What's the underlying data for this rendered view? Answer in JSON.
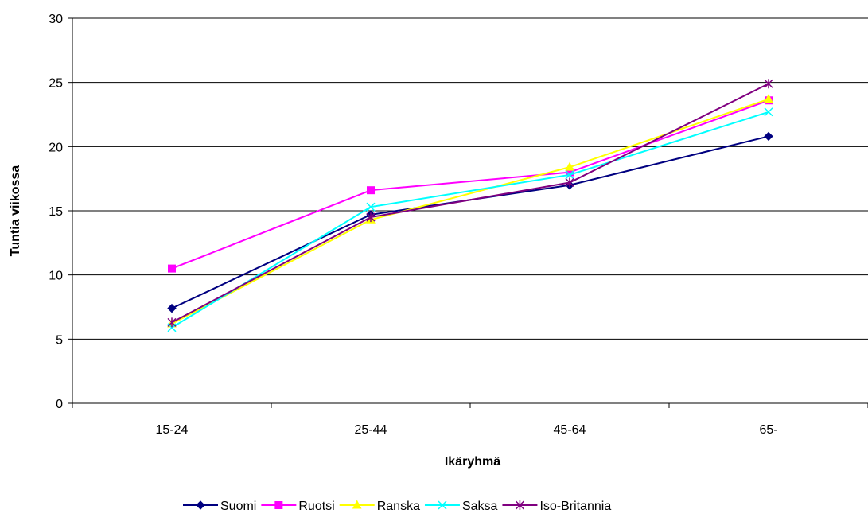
{
  "chart_data": {
    "type": "line",
    "title": "",
    "xlabel": "Ikäryhmä",
    "ylabel": "Tuntia viikossa",
    "categories": [
      "15-24",
      "25-44",
      "45-64",
      "65-"
    ],
    "ylim": [
      0,
      30
    ],
    "yticks": [
      "0",
      "5",
      "10",
      "15",
      "20",
      "25",
      "30"
    ],
    "grid": "horizontal",
    "legend_position": "bottom",
    "series": [
      {
        "name": "Suomi",
        "color": "#000080",
        "marker": "diamond",
        "values": [
          7.4,
          14.7,
          17.0,
          20.8
        ]
      },
      {
        "name": "Ruotsi",
        "color": "#FF00FF",
        "marker": "square",
        "values": [
          10.5,
          16.6,
          18.0,
          23.6
        ]
      },
      {
        "name": "Ranska",
        "color": "#FFFF00",
        "marker": "triangle",
        "values": [
          6.2,
          14.3,
          18.4,
          23.7
        ]
      },
      {
        "name": "Saksa",
        "color": "#00FFFF",
        "marker": "x",
        "values": [
          5.9,
          15.3,
          17.8,
          22.7
        ]
      },
      {
        "name": "Iso-Britannia",
        "color": "#800080",
        "marker": "asterisk",
        "values": [
          6.3,
          14.5,
          17.2,
          24.9
        ]
      }
    ]
  }
}
